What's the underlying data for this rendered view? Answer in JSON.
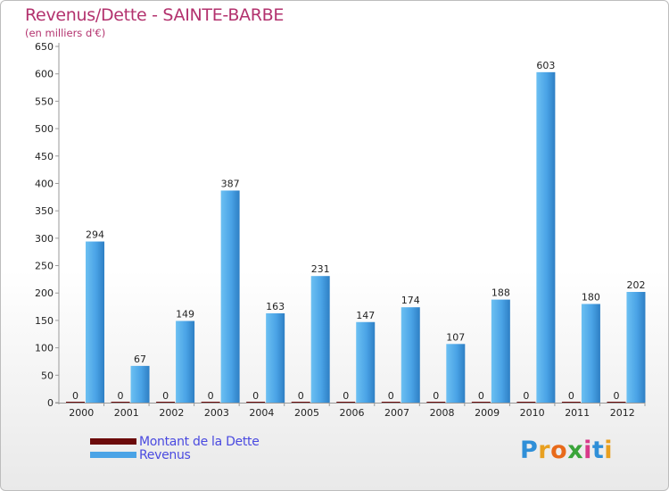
{
  "chart_data": {
    "type": "bar",
    "title": "Revenus/Dette - SAINTE-BARBE",
    "subtitle": "(en milliers d'€)",
    "categories": [
      "2000",
      "2001",
      "2002",
      "2003",
      "2004",
      "2005",
      "2006",
      "2007",
      "2008",
      "2009",
      "2010",
      "2011",
      "2012"
    ],
    "series": [
      {
        "name": "Montant de la Dette",
        "color": "#6b0a0a",
        "values": [
          0,
          0,
          0,
          0,
          0,
          0,
          0,
          0,
          0,
          0,
          0,
          0,
          0
        ]
      },
      {
        "name": "Revenus",
        "color": "#4aa3e6",
        "values": [
          294,
          67,
          149,
          387,
          163,
          231,
          147,
          174,
          107,
          188,
          603,
          180,
          202
        ]
      }
    ],
    "ylim": [
      0,
      650
    ],
    "yticks": [
      0,
      50,
      100,
      150,
      200,
      250,
      300,
      350,
      400,
      450,
      500,
      550,
      600,
      650
    ],
    "grid": false,
    "legend_position": "bottom-left"
  },
  "logo": {
    "letters": [
      "P",
      "r",
      "o",
      "x",
      "i",
      "t",
      "i"
    ],
    "colors": [
      "#2f8fd8",
      "#e8a020",
      "#e86a1a",
      "#3aa43a",
      "#d83a8a",
      "#2f8fd8",
      "#e8a020"
    ]
  }
}
